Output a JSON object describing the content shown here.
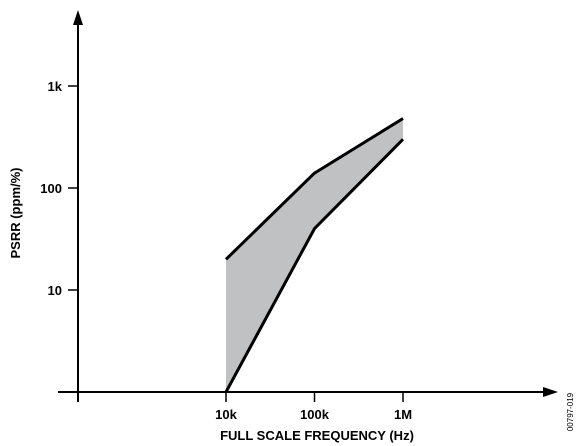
{
  "chart_data": {
    "type": "area",
    "title": "",
    "xlabel": "FULL SCALE FREQUENCY (Hz)",
    "ylabel": "PSRR (ppm/%)",
    "x_scale": "log",
    "y_scale": "log",
    "x_ticks": [
      {
        "value": 10000,
        "label": "10k"
      },
      {
        "value": 100000,
        "label": "100k"
      },
      {
        "value": 1000000,
        "label": "1M"
      }
    ],
    "y_ticks": [
      {
        "value": 10,
        "label": "10"
      },
      {
        "value": 100,
        "label": "100"
      },
      {
        "value": 1000,
        "label": "1k"
      }
    ],
    "xlim": [
      500,
      15000000
    ],
    "ylim": [
      1,
      18000
    ],
    "grid": false,
    "fill_color": "#c0c1c3",
    "line_color": "#000000",
    "series": [
      {
        "x": [
          10000,
          100000,
          1000000
        ],
        "values": [
          20,
          140,
          480
        ]
      },
      {
        "x": [
          10000,
          100000,
          1000000
        ],
        "values": [
          1,
          40,
          300
        ]
      }
    ],
    "figure_id": "00797-019"
  }
}
